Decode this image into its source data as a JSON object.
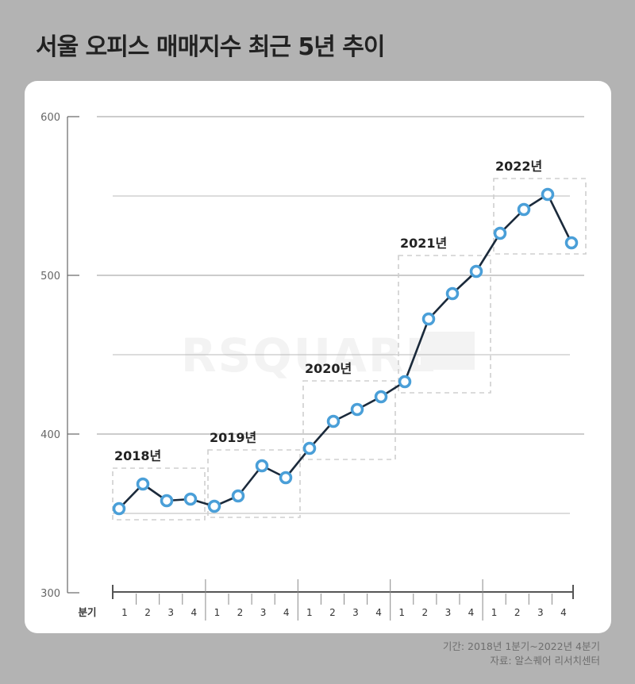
{
  "title": "서울 오피스 매매지수 최근 5년 추이",
  "watermark": "RSQUARE",
  "footer": {
    "period": "기간: 2018년 1분기~2022년 4분기",
    "source": "자료: 알스퀘어 리서치센터"
  },
  "colors": {
    "line": "#1b2a3b",
    "marker": "#4a9fd8",
    "grid": "#999999",
    "box": "#cfcfcf",
    "background": "#b3b3b3",
    "card": "#ffffff"
  },
  "chart_data": {
    "type": "line",
    "title": "서울 오피스 매매지수 최근 5년 추이",
    "xlabel": "분기",
    "ylabel": "",
    "ylim": [
      300,
      600
    ],
    "yticks": [
      300,
      400,
      500,
      600
    ],
    "grid": true,
    "minor_grid": [
      350,
      450,
      550
    ],
    "legend": "none",
    "year_groups": [
      "2018년",
      "2019년",
      "2020년",
      "2021년",
      "2022년"
    ],
    "quarter_labels": [
      "1",
      "2",
      "3",
      "4",
      "1",
      "2",
      "3",
      "4",
      "1",
      "2",
      "3",
      "4",
      "1",
      "2",
      "3",
      "4",
      "1",
      "2",
      "3",
      "4"
    ],
    "categories": [
      "2018 Q1",
      "2018 Q2",
      "2018 Q3",
      "2018 Q4",
      "2019 Q1",
      "2019 Q2",
      "2019 Q3",
      "2019 Q4",
      "2020 Q1",
      "2020 Q2",
      "2020 Q3",
      "2020 Q4",
      "2021 Q1",
      "2021 Q2",
      "2021 Q3",
      "2021 Q4",
      "2022 Q1",
      "2022 Q2",
      "2022 Q3",
      "2022 Q4"
    ],
    "series": [
      {
        "name": "서울 오피스 매매지수",
        "values": [
          353,
          368.5,
          358,
          359,
          354.5,
          361,
          380,
          372.5,
          391,
          408,
          415.5,
          423.5,
          433,
          472.5,
          488.5,
          502.5,
          526.5,
          541.5,
          551,
          520.5
        ]
      }
    ]
  }
}
